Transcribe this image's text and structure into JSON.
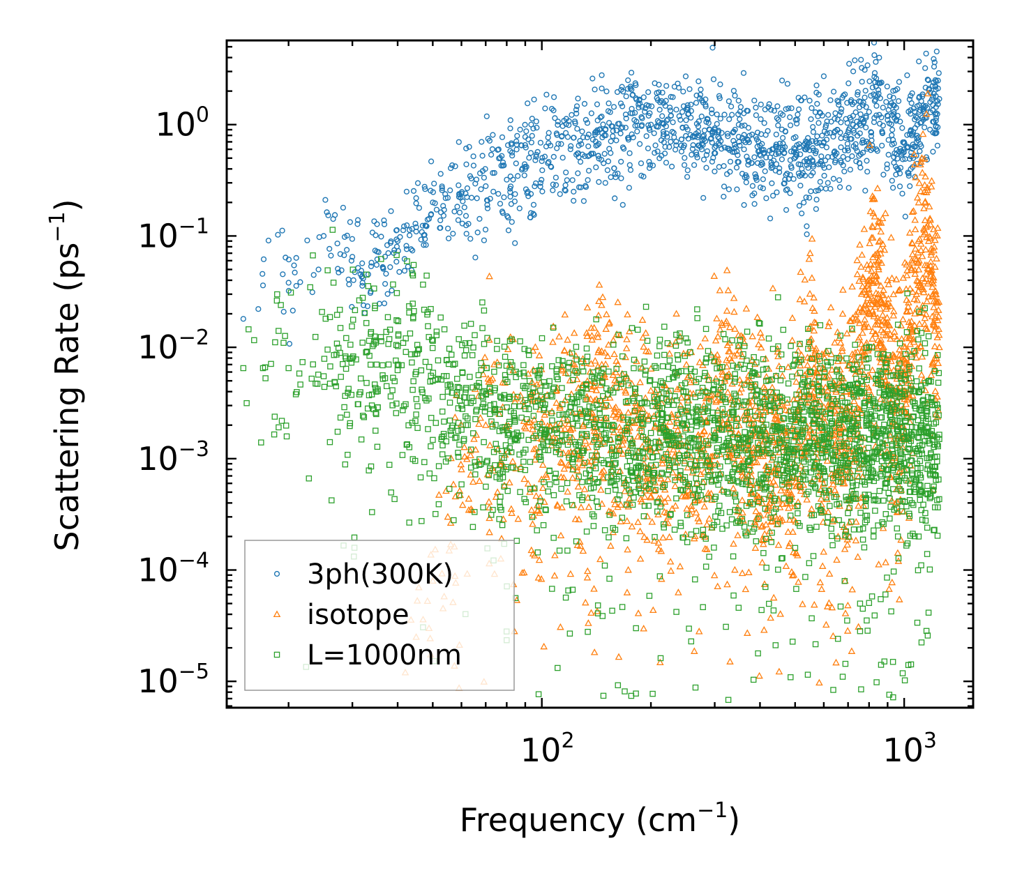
{
  "chart_data": {
    "type": "scatter",
    "title": "",
    "xlabel": {
      "base": "Frequency (cm",
      "sup": "−1",
      "tail": ")"
    },
    "ylabel": {
      "base": "Scattering Rate (ps",
      "sup": "−1",
      "tail": ")"
    },
    "xscale": "log",
    "yscale": "log",
    "xlim": [
      13.5,
      1550
    ],
    "ylim": [
      5.8e-06,
      5.7
    ],
    "x_ticks": [
      {
        "value": 100,
        "base": "10",
        "exp": "2"
      },
      {
        "value": 1000,
        "base": "10",
        "exp": "3"
      }
    ],
    "y_ticks": [
      {
        "value": 1,
        "base": "10",
        "exp": "0"
      },
      {
        "value": 0.1,
        "base": "10",
        "exp": "−1"
      },
      {
        "value": 0.01,
        "base": "10",
        "exp": "−2"
      },
      {
        "value": 0.001,
        "base": "10",
        "exp": "−3"
      },
      {
        "value": 0.0001,
        "base": "10",
        "exp": "−4"
      },
      {
        "value": 1e-05,
        "base": "10",
        "exp": "−5"
      }
    ],
    "grid": false,
    "legend_position": "bottom-left",
    "series": [
      {
        "name": "3ph(300K)",
        "marker": "circle",
        "color": "#1f77b4",
        "trend": [
          [
            15,
            0.018
          ],
          [
            17,
            0.036
          ],
          [
            20,
            0.038
          ],
          [
            25,
            0.1
          ],
          [
            30,
            0.065
          ],
          [
            32,
            0.038
          ],
          [
            35,
            0.055
          ],
          [
            40,
            0.09
          ],
          [
            45,
            0.12
          ],
          [
            50,
            0.2
          ],
          [
            55,
            0.22
          ],
          [
            60,
            0.24
          ],
          [
            70,
            0.28
          ],
          [
            80,
            0.32
          ],
          [
            90,
            0.4
          ],
          [
            100,
            0.47
          ],
          [
            120,
            0.6
          ],
          [
            150,
            0.8
          ],
          [
            180,
            1.1
          ],
          [
            200,
            1.0
          ],
          [
            230,
            1.05
          ],
          [
            250,
            0.95
          ],
          [
            280,
            0.8
          ],
          [
            300,
            0.9
          ],
          [
            350,
            0.7
          ],
          [
            400,
            0.65
          ],
          [
            450,
            0.55
          ],
          [
            500,
            0.6
          ],
          [
            550,
            0.5
          ],
          [
            600,
            0.7
          ],
          [
            700,
            0.85
          ],
          [
            800,
            1.3
          ],
          [
            850,
            1.9
          ],
          [
            900,
            1.1
          ],
          [
            1000,
            0.6
          ],
          [
            1050,
            0.8
          ],
          [
            1100,
            1.3
          ],
          [
            1200,
            1.5
          ],
          [
            1250,
            1.7
          ]
        ],
        "spread": 0.25,
        "point_count": 1400
      },
      {
        "name": "isotope",
        "marker": "triangle",
        "color": "#ff7f0e",
        "trend": [
          [
            42,
            1.2e-05
          ],
          [
            45,
            2.5e-05
          ],
          [
            50,
            8e-05
          ],
          [
            55,
            0.0003
          ],
          [
            60,
            0.0008
          ],
          [
            65,
            0.0015
          ],
          [
            70,
            0.002
          ],
          [
            80,
            0.0018
          ],
          [
            100,
            0.0015
          ],
          [
            120,
            0.0018
          ],
          [
            150,
            0.0035
          ],
          [
            170,
            0.0018
          ],
          [
            200,
            0.0012
          ],
          [
            250,
            0.0013
          ],
          [
            280,
            0.0012
          ],
          [
            320,
            0.005
          ],
          [
            350,
            0.002
          ],
          [
            400,
            0.0012
          ],
          [
            450,
            0.0015
          ],
          [
            500,
            0.0012
          ],
          [
            550,
            0.008
          ],
          [
            600,
            0.0018
          ],
          [
            700,
            0.0015
          ],
          [
            800,
            0.02
          ],
          [
            850,
            0.05
          ],
          [
            900,
            0.006
          ],
          [
            1000,
            0.004
          ],
          [
            1100,
            0.06
          ],
          [
            1150,
            0.12
          ],
          [
            1200,
            0.03
          ],
          [
            1250,
            0.01
          ]
        ],
        "spread": 0.5,
        "point_count": 2200
      },
      {
        "name": "L=1000nm",
        "marker": "square",
        "color": "#2ca02c",
        "trend": [
          [
            15,
            0.0065
          ],
          [
            17,
            0.0065
          ],
          [
            20,
            0.0065
          ],
          [
            25,
            0.0055
          ],
          [
            30,
            0.008
          ],
          [
            35,
            0.007
          ],
          [
            40,
            0.007
          ],
          [
            45,
            0.006
          ],
          [
            50,
            0.005
          ],
          [
            55,
            0.004
          ],
          [
            60,
            0.003
          ],
          [
            80,
            0.0018
          ],
          [
            100,
            0.0018
          ],
          [
            150,
            0.0017
          ],
          [
            200,
            0.0017
          ],
          [
            300,
            0.0016
          ],
          [
            400,
            0.0016
          ],
          [
            500,
            0.0016
          ],
          [
            600,
            0.0015
          ],
          [
            800,
            0.0015
          ],
          [
            1000,
            0.0015
          ],
          [
            1250,
            0.0015
          ]
        ],
        "spread": 0.42,
        "point_count": 2600
      }
    ]
  }
}
